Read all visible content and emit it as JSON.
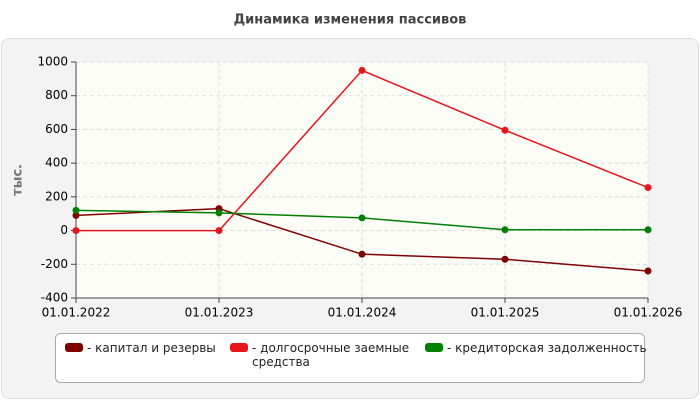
{
  "chart_data": {
    "type": "line",
    "title": "Динамика изменения пассивов",
    "y_label": "тыс.",
    "categories": [
      "01.01.2022",
      "01.01.2023",
      "01.01.2024",
      "01.01.2025",
      "01.01.2026"
    ],
    "series": [
      {
        "name": "- капитал и резервы",
        "color": "#800000",
        "values": [
          90,
          130,
          -140,
          -170,
          -240
        ]
      },
      {
        "name": "- долгосрочные заемные средства",
        "color": "#e8141b",
        "values": [
          0,
          0,
          950,
          595,
          255
        ]
      },
      {
        "name": "- кредиторская задолженность",
        "color": "#008000",
        "values": [
          120,
          105,
          75,
          5,
          5
        ]
      }
    ],
    "ylim": [
      -400,
      1000
    ],
    "yticks": [
      -400,
      -200,
      0,
      200,
      400,
      600,
      800,
      1000
    ],
    "grid": true
  }
}
